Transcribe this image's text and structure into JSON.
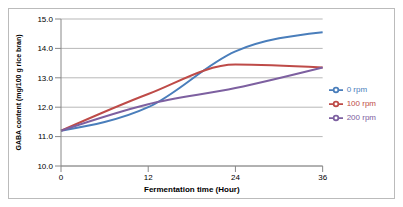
{
  "chart_data": {
    "type": "line",
    "x_label": "Fermentation time (Hour)",
    "y_label": "GABA content (mg/100 g rice bran)",
    "categories": [
      "0",
      "12",
      "24",
      "36"
    ],
    "series": [
      {
        "name": "0 rpm",
        "color": "#4a7ebb",
        "values": [
          11.2,
          12.0,
          13.9,
          14.55
        ]
      },
      {
        "name": "100 rpm",
        "color": "#be4b48",
        "values": [
          11.2,
          12.45,
          13.45,
          13.35
        ]
      },
      {
        "name": "200 rpm",
        "color": "#7d60a0",
        "values": [
          11.2,
          12.1,
          12.65,
          13.35
        ]
      }
    ],
    "ylim": [
      10,
      15
    ],
    "yticks": [
      {
        "value": 10,
        "label": "10.0"
      },
      {
        "value": 11,
        "label": "11.0"
      },
      {
        "value": 12,
        "label": "12.0"
      },
      {
        "value": 13,
        "label": "13.0"
      },
      {
        "value": 14,
        "label": "14.0"
      },
      {
        "value": 15,
        "label": "15.0"
      }
    ],
    "grid": true,
    "legend": "right",
    "line_style": "smooth"
  }
}
